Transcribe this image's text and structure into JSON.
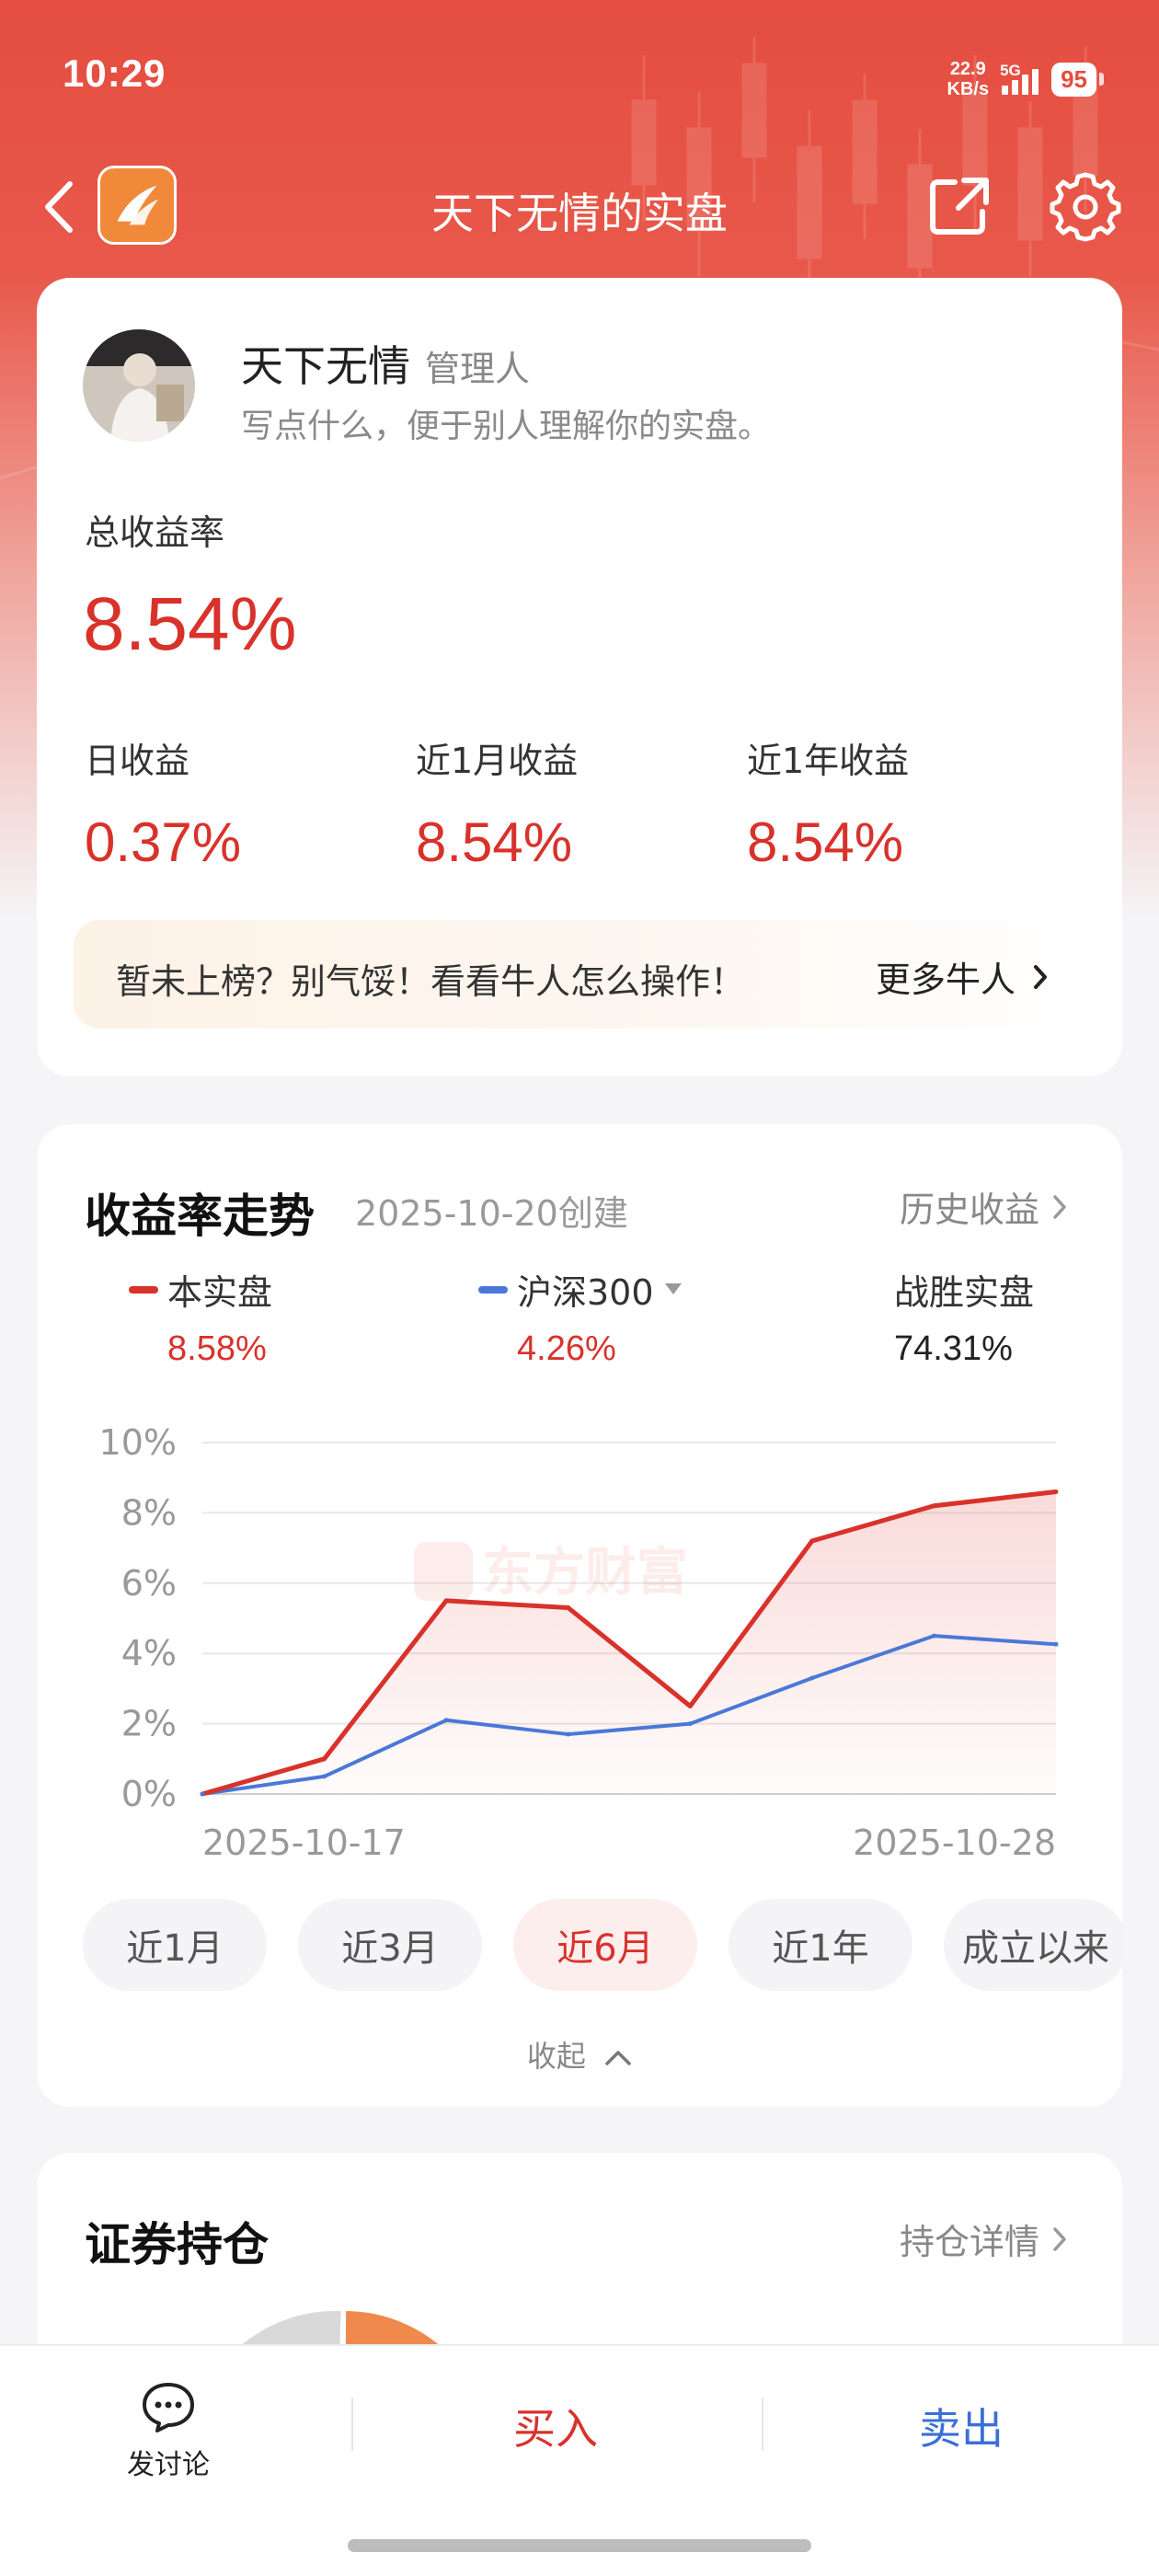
{
  "status_bar": {
    "time": "10:29",
    "net_speed_value": "22.9",
    "net_speed_unit": "KB/s",
    "network": "5G",
    "battery": "95"
  },
  "nav": {
    "title": "天下无情的实盘",
    "icons": [
      "back-icon",
      "app-logo",
      "share-icon",
      "gear-icon"
    ]
  },
  "profile": {
    "name": "天下无情",
    "role": "管理人",
    "bio": "写点什么，便于别人理解你的实盘。",
    "total_return_label": "总收益率",
    "total_return": "8.54%",
    "stats": [
      {
        "label": "日收益",
        "value": "0.37%"
      },
      {
        "label": "近1月收益",
        "value": "8.54%"
      },
      {
        "label": "近1年收益",
        "value": "8.54%"
      }
    ],
    "banner_text": "暂未上榜？别气馁！看看牛人怎么操作！",
    "banner_link": "更多牛人"
  },
  "trend": {
    "title": "收益率走势",
    "created": "2025-10-20创建",
    "history_link": "历史收益",
    "legend": [
      {
        "name": "本实盘",
        "value": "8.58%",
        "color": "#d8322b"
      },
      {
        "name": "沪深300",
        "value": "4.26%",
        "color": "#4a78d6"
      },
      {
        "name": "战胜实盘",
        "value": "74.31%"
      }
    ],
    "watermark": "东方财富",
    "tabs": [
      "近1月",
      "近3月",
      "近6月",
      "近1年",
      "成立以来"
    ],
    "active_tab": 2,
    "collapse_label": "收起"
  },
  "chart_data": {
    "type": "line",
    "x_ticks": [
      "2025-10-17",
      "2025-10-28"
    ],
    "y_ticks": [
      "10%",
      "8%",
      "6%",
      "4%",
      "2%",
      "0%"
    ],
    "ylim": [
      0,
      10
    ],
    "grid": true,
    "series": [
      {
        "name": "本实盘",
        "color": "#d8322b",
        "values": [
          0,
          1.0,
          5.5,
          5.3,
          2.5,
          7.2,
          8.2,
          8.6
        ]
      },
      {
        "name": "沪深300",
        "color": "#4a78d6",
        "values": [
          0,
          0.5,
          2.1,
          1.7,
          2.0,
          3.3,
          4.5,
          4.26
        ]
      }
    ]
  },
  "holdings": {
    "title": "证券持仓",
    "detail_link": "持仓详情"
  },
  "bottom_bar": {
    "discuss": "发讨论",
    "buy": "买入",
    "sell": "卖出"
  }
}
